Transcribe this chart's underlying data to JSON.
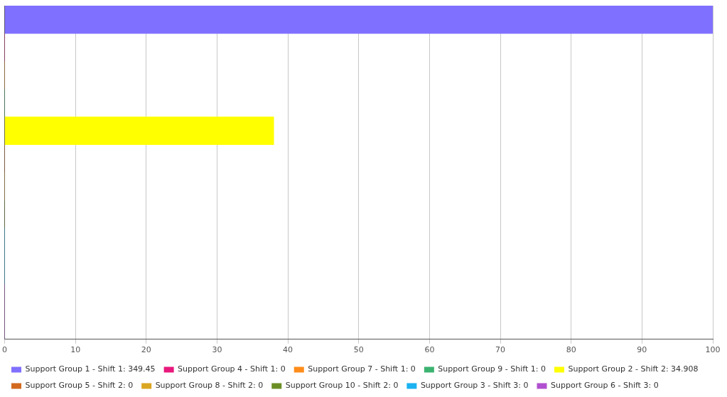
{
  "chart_data": {
    "type": "bar",
    "orientation": "horizontal",
    "categories": [
      null,
      null,
      null
    ],
    "series": [
      {
        "name": "Support Group 1 - Shift 1: 349.45",
        "color": "#8070ff",
        "values": [
          100,
          null,
          null
        ]
      },
      {
        "name": "Support Group 4 - Shift 1: 0",
        "color": "#e8187c",
        "values": [
          0,
          null,
          null
        ]
      },
      {
        "name": "Support Group 7 - Shift 1: 0",
        "color": "#ff8c1a",
        "values": [
          0,
          null,
          null
        ]
      },
      {
        "name": "Support Group 9 - Shift 1: 0",
        "color": "#3cb371",
        "values": [
          0,
          null,
          null
        ]
      },
      {
        "name": "Support Group 2 - Shift 2: 34.908",
        "color": "#ffff00",
        "values": [
          null,
          38,
          null
        ]
      },
      {
        "name": "Support Group 5 - Shift 2: 0",
        "color": "#d2691e",
        "values": [
          null,
          0,
          null
        ]
      },
      {
        "name": "Support Group 8 - Shift 2: 0",
        "color": "#daa520",
        "values": [
          null,
          0,
          null
        ]
      },
      {
        "name": "Support Group 10 - Shift 2: 0",
        "color": "#6b8e23",
        "values": [
          null,
          0,
          null
        ]
      },
      {
        "name": "Support Group 3 - Shift 3: 0",
        "color": "#1ab2f0",
        "values": [
          null,
          null,
          0
        ]
      },
      {
        "name": "Support Group 6 - Shift 3: 0",
        "color": "#b050d0",
        "values": [
          null,
          null,
          0
        ]
      }
    ],
    "xlim": [
      0,
      100
    ],
    "xticks": [
      0,
      10,
      20,
      30,
      40,
      50,
      60,
      70,
      80,
      90,
      100
    ],
    "grid": "x",
    "legend": "bottom"
  }
}
